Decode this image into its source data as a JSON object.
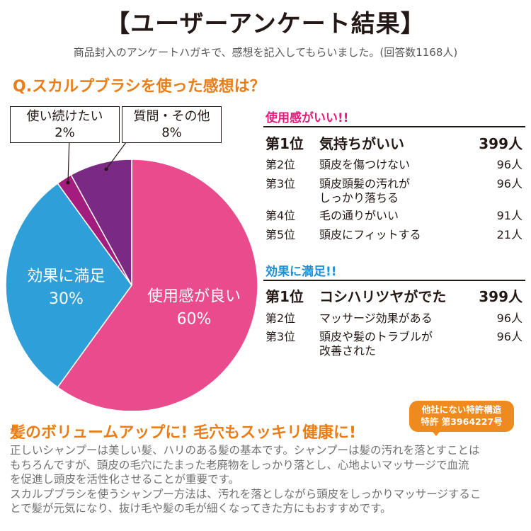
{
  "header": {
    "title": "【ユーザーアンケート結果】",
    "subtitle": "商品封入のアンケートハガキで、感想を記入してもらいました。(回答数1168人)"
  },
  "question": "Q.スカルプブラシを使った感想は？",
  "chart_data": {
    "type": "pie",
    "slices": [
      {
        "label": "使用感が良い",
        "value": 60,
        "value_label": "60%",
        "color": "#e94b8d"
      },
      {
        "label": "効果に満足",
        "value": 30,
        "value_label": "30%",
        "color": "#2e9fd8"
      },
      {
        "label": "使い続けたい",
        "value": 2,
        "value_label": "2%",
        "color": "#a31d7e"
      },
      {
        "label": "質問・その他",
        "value": 8,
        "value_label": "8%",
        "color": "#7b2a83"
      }
    ]
  },
  "rankings": {
    "good_feel": {
      "heading": "使用感がいい!!",
      "items": [
        {
          "rank": "第1位",
          "text": "気持ちがいい",
          "count": "399人"
        },
        {
          "rank": "第2位",
          "text": "頭皮を傷つけない",
          "count": "96人"
        },
        {
          "rank": "第3位",
          "text_lines": [
            "頭皮頭髪の汚れが",
            "しっかり落ちる"
          ],
          "count": "96人"
        },
        {
          "rank": "第4位",
          "text": "毛の通りがいい",
          "count": "91人"
        },
        {
          "rank": "第5位",
          "text": "頭皮にフィットする",
          "count": "21人"
        }
      ]
    },
    "satisfied": {
      "heading": "効果に満足!!",
      "items": [
        {
          "rank": "第1位",
          "text": "コシハリツヤがでた",
          "count": "399人"
        },
        {
          "rank": "第2位",
          "text": "マッサージ効果がある",
          "count": "96人"
        },
        {
          "rank": "第3位",
          "text_lines": [
            "頭皮や髪のトラブルが",
            "改善された"
          ],
          "count": "96人"
        }
      ]
    }
  },
  "patent_badge": {
    "line1": "他社にない特許構造",
    "line2": "特許 第3964227号",
    "color": "#ef8a1e"
  },
  "bottom": {
    "heading": "髪のボリュームアップに! 毛穴もスッキリ健康に!",
    "lines": [
      "正しいシャンプーは美しい髪、ハリのある髪の基本です。シャンプーは髪の汚れを落とすことは",
      "もちろんですが、頭皮の毛穴にたまった老廃物をしっかり落とし、心地よいマッサージで血流",
      "を促進し頭皮を活性化させることが重要です。",
      "スカルプブラシを使うシャンプー方法は、汚れを落としながら頭皮をしっかりマッサージするこ",
      "とで髪が元気になり、抜け毛や髪の毛が細くなってきた方にもおすすめです。"
    ]
  }
}
